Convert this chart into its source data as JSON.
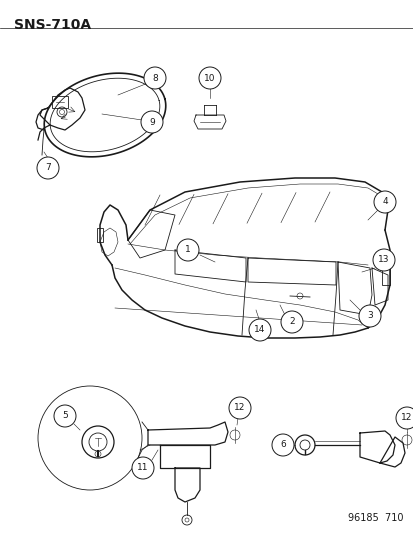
{
  "title": "SNS-710A",
  "footer": "96185  710",
  "bg_color": "#ffffff",
  "line_color": "#1a1a1a",
  "fig_w": 4.14,
  "fig_h": 5.33,
  "dpi": 100
}
